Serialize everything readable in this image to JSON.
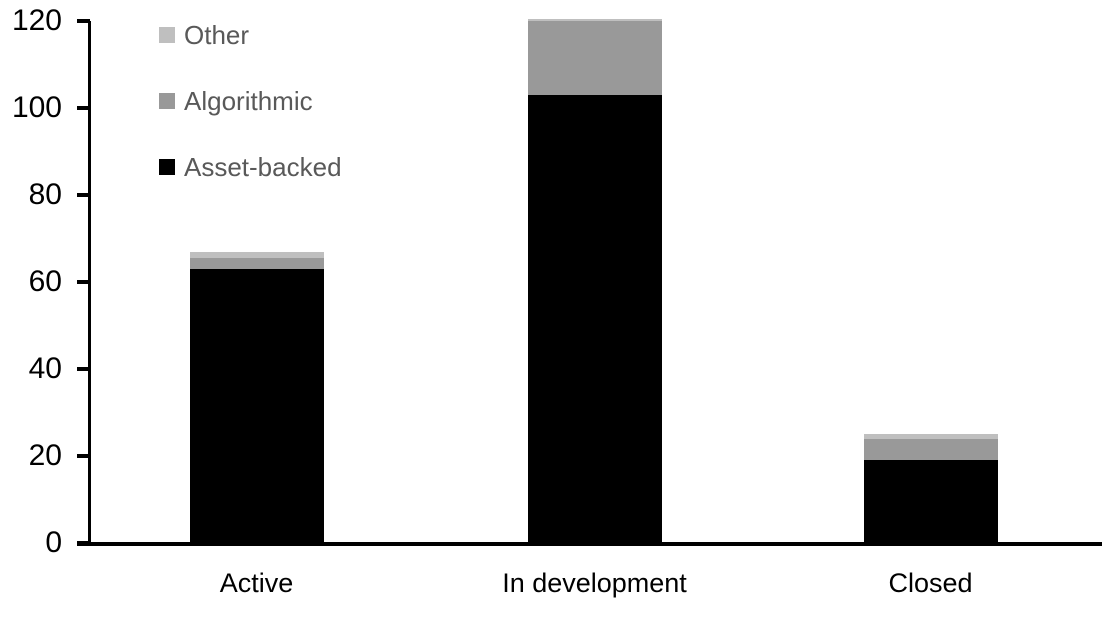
{
  "chart_data": {
    "type": "bar",
    "subtype": "stacked",
    "title": "",
    "xlabel": "",
    "ylabel": "",
    "categories": [
      "Active",
      "In development",
      "Closed"
    ],
    "series": [
      {
        "name": "Asset-backed",
        "color": "#000000",
        "values": [
          63,
          103,
          19
        ]
      },
      {
        "name": "Algorithmic",
        "color": "#999999",
        "values": [
          2.5,
          17,
          5
        ]
      },
      {
        "name": "Other",
        "color": "#BFBFBF",
        "values": [
          1.5,
          0.5,
          1
        ]
      }
    ],
    "ylim": [
      0,
      120
    ],
    "yticks": [
      0,
      20,
      40,
      60,
      80,
      100,
      120
    ],
    "grid": false,
    "legend_position": "top-left",
    "legend_order": [
      "Other",
      "Algorithmic",
      "Asset-backed"
    ],
    "colors": {
      "axis": "#000000",
      "tick_label_text": "#000000",
      "category_label_text": "#000000",
      "legend_text": "#595959",
      "background": "#ffffff"
    }
  }
}
